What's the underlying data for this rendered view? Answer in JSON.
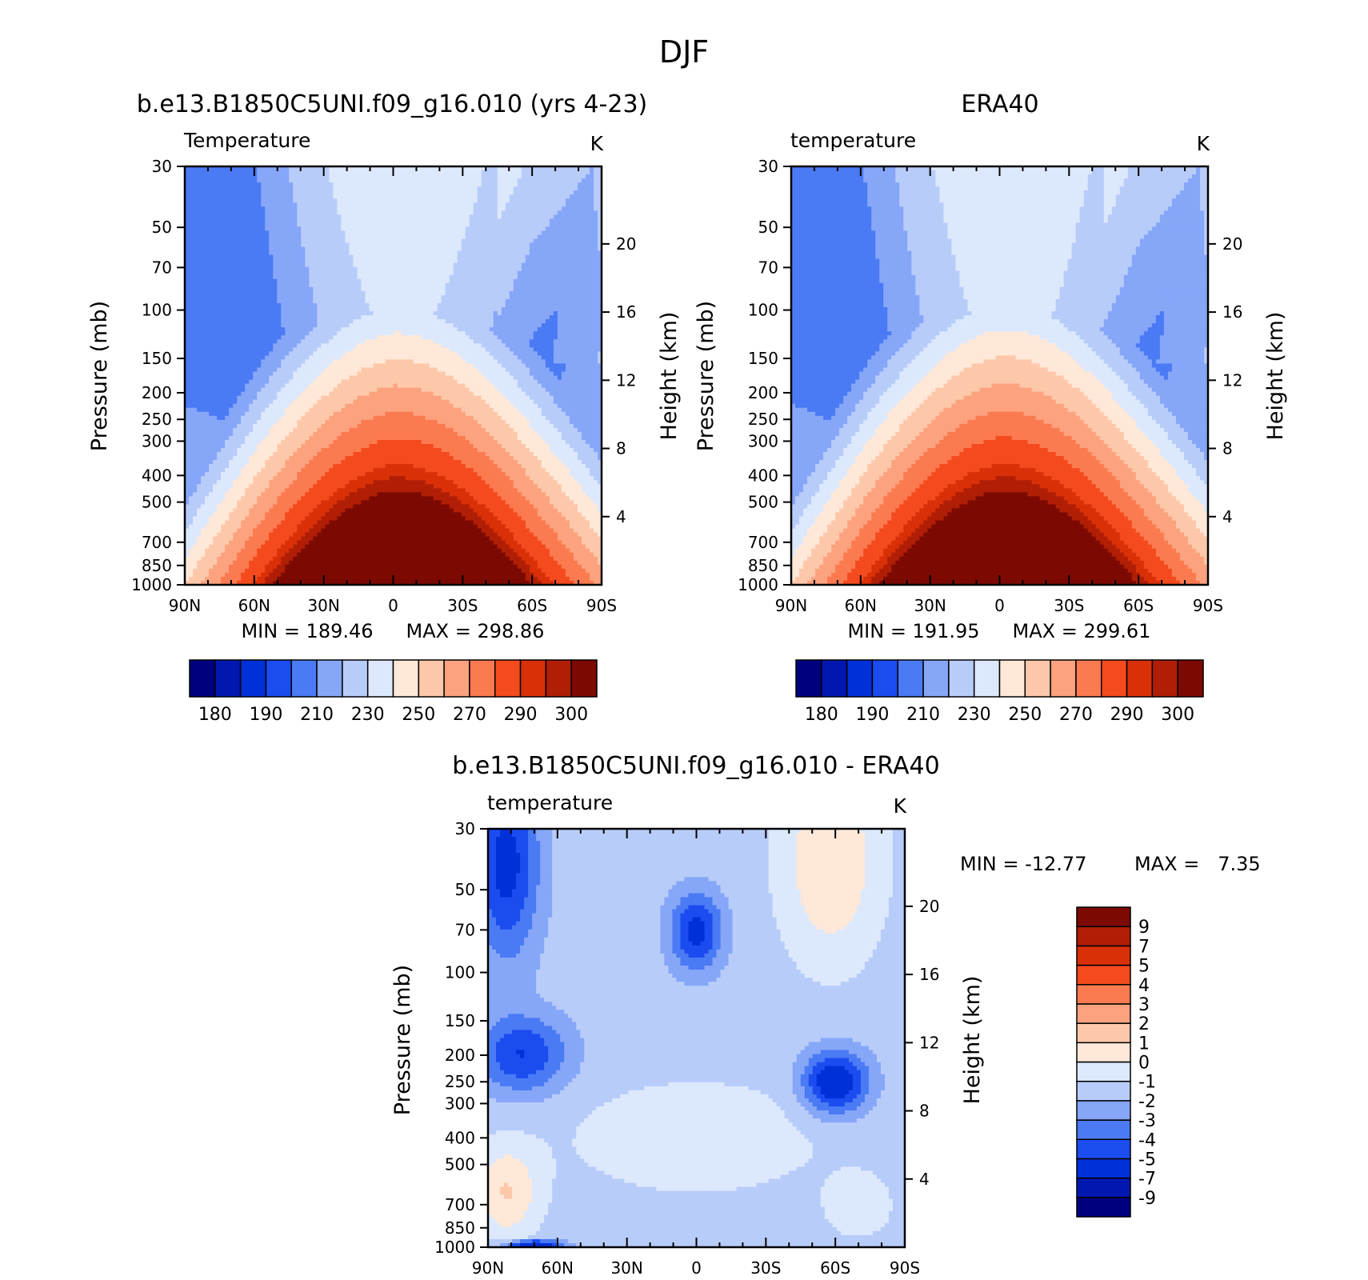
{
  "page_title": "DJF",
  "chart_data": [
    {
      "type": "heatmap",
      "id": "model",
      "title": "b.e13.B1850C5UNI.f09_g16.010 (yrs 4-23)",
      "left_label": "Temperature",
      "right_label": "K",
      "xlabel": "",
      "ylabel": "Pressure (mb)",
      "y2label": "Height (km)",
      "x_ticks": [
        "90N",
        "60N",
        "30N",
        "0",
        "30S",
        "60S",
        "90S"
      ],
      "x_range": [
        -90,
        90
      ],
      "y_ticks": [
        30,
        50,
        70,
        100,
        150,
        200,
        250,
        300,
        400,
        500,
        700,
        850,
        1000
      ],
      "y_range": [
        30,
        1000
      ],
      "y2_ticks": [
        4,
        8,
        12,
        16,
        20
      ],
      "min_text": "MIN = 189.46",
      "max_text": "MAX = 298.86",
      "min": 189.46,
      "max": 298.86,
      "field_params": {
        "a": 0,
        "tropo_drop": 0
      }
    },
    {
      "type": "heatmap",
      "id": "era40",
      "title": "ERA40",
      "left_label": "temperature",
      "right_label": "K",
      "xlabel": "",
      "ylabel": "Pressure (mb)",
      "y2label": "Height (km)",
      "x_ticks": [
        "90N",
        "60N",
        "30N",
        "0",
        "30S",
        "60S",
        "90S"
      ],
      "x_range": [
        -90,
        90
      ],
      "y_ticks": [
        30,
        50,
        70,
        100,
        150,
        200,
        250,
        300,
        400,
        500,
        700,
        850,
        1000
      ],
      "y_range": [
        30,
        1000
      ],
      "y2_ticks": [
        4,
        8,
        12,
        16,
        20
      ],
      "min_text": "MIN = 191.95",
      "max_text": "MAX = 299.61",
      "min": 191.95,
      "max": 299.61,
      "field_params": {
        "a": 1,
        "tropo_drop": 0
      }
    },
    {
      "type": "heatmap",
      "id": "difference",
      "title": "b.e13.B1850C5UNI.f09_g16.010 - ERA40",
      "left_label": "temperature",
      "right_label": "K",
      "xlabel": "",
      "ylabel": "Pressure (mb)",
      "y2label": "Height (km)",
      "x_ticks": [
        "90N",
        "60N",
        "30N",
        "0",
        "30S",
        "60S",
        "90S"
      ],
      "x_range": [
        -90,
        90
      ],
      "y_ticks": [
        30,
        50,
        70,
        100,
        150,
        200,
        250,
        300,
        400,
        500,
        700,
        850,
        1000
      ],
      "y_range": [
        30,
        1000
      ],
      "y2_ticks": [
        4,
        8,
        12,
        16,
        20
      ],
      "min_text": "MIN = -12.77",
      "max_text": "MAX =   7.35",
      "min": -12.77,
      "max": 7.35
    }
  ],
  "temp_colorbar": {
    "labels": [
      "180",
      "190",
      "210",
      "230",
      "250",
      "270",
      "290",
      "300"
    ],
    "levels": [
      180,
      185,
      190,
      200,
      210,
      220,
      230,
      240,
      250,
      260,
      270,
      280,
      290,
      295,
      300
    ],
    "colors": [
      "#00007f",
      "#0018b0",
      "#0030d8",
      "#1a4cf0",
      "#4a7af4",
      "#86a6f8",
      "#b8ccfa",
      "#dce8fc",
      "#ffe8d8",
      "#fdc8aa",
      "#fca27e",
      "#fb7a50",
      "#f44a1e",
      "#da3008",
      "#b01e06",
      "#7c0a02"
    ]
  },
  "diff_colorbar": {
    "labels": [
      "9",
      "7",
      "5",
      "4",
      "3",
      "2",
      "1",
      "0",
      "-1",
      "-2",
      "-3",
      "-4",
      "-5",
      "-7",
      "-9"
    ],
    "levels": [
      -9,
      -7,
      -5,
      -4,
      -3,
      -2,
      -1,
      0,
      1,
      2,
      3,
      4,
      5,
      7,
      9
    ],
    "colors": [
      "#00007f",
      "#0018b0",
      "#0030d8",
      "#1a4cf0",
      "#4a7af4",
      "#86a6f8",
      "#b8ccfa",
      "#dce8fc",
      "#ffe8d8",
      "#fdc8aa",
      "#fca27e",
      "#fb7a50",
      "#f44a1e",
      "#da3008",
      "#b01e06",
      "#7c0a02"
    ]
  }
}
